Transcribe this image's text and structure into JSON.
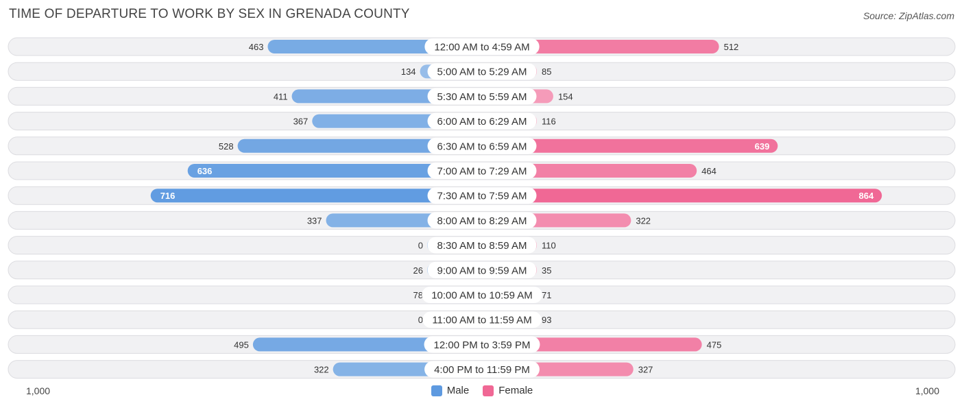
{
  "title": "TIME OF DEPARTURE TO WORK BY SEX IN GRENADA COUNTY",
  "source": "Source: ZipAtlas.com",
  "colors": {
    "male_strong": "#5e9ae0",
    "male_light": "#a3c5eb",
    "female_strong": "#f06895",
    "female_light": "#f6a8c2",
    "row_bg": "#f1f1f3",
    "row_border": "#dcdce0"
  },
  "chart_data": {
    "type": "bar",
    "orientation": "horizontal-diverging",
    "title": "TIME OF DEPARTURE TO WORK BY SEX IN GRENADA COUNTY",
    "categories": [
      "12:00 AM to 4:59 AM",
      "5:00 AM to 5:29 AM",
      "5:30 AM to 5:59 AM",
      "6:00 AM to 6:29 AM",
      "6:30 AM to 6:59 AM",
      "7:00 AM to 7:29 AM",
      "7:30 AM to 7:59 AM",
      "8:00 AM to 8:29 AM",
      "8:30 AM to 8:59 AM",
      "9:00 AM to 9:59 AM",
      "10:00 AM to 10:59 AM",
      "11:00 AM to 11:59 AM",
      "12:00 PM to 3:59 PM",
      "4:00 PM to 11:59 PM"
    ],
    "series": [
      {
        "name": "Male",
        "values": [
          463,
          134,
          411,
          367,
          528,
          636,
          716,
          337,
          0,
          26,
          78,
          0,
          495,
          322
        ]
      },
      {
        "name": "Female",
        "values": [
          512,
          85,
          154,
          116,
          639,
          464,
          864,
          322,
          110,
          35,
          71,
          93,
          475,
          327
        ]
      }
    ],
    "axis_min_label": "1,000",
    "axis_max_label": "1,000",
    "xlim": [
      -1000,
      1000
    ],
    "legend": [
      "Male",
      "Female"
    ],
    "legend_position": "bottom-center"
  }
}
